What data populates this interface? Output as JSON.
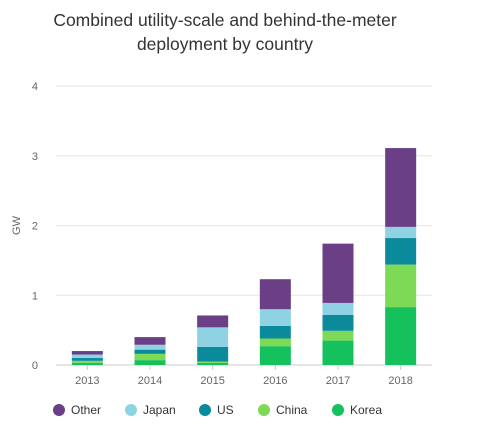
{
  "chart_data": {
    "type": "bar",
    "stacked": true,
    "title": [
      "Combined utility-scale and behind-the-meter",
      "deployment by country"
    ],
    "ylabel": "GW",
    "xlabel": "",
    "ylim": [
      0,
      4
    ],
    "yticks": [
      "0",
      "1",
      "2",
      "3",
      "4"
    ],
    "grid": true,
    "legend_position": "bottom",
    "categories": [
      "2013",
      "2014",
      "2015",
      "2016",
      "2017",
      "2018"
    ],
    "series": [
      {
        "name": "Korea",
        "color": "#14c15c",
        "values": [
          0.03,
          0.07,
          0.03,
          0.27,
          0.35,
          0.83
        ]
      },
      {
        "name": "China",
        "color": "#7ed957",
        "values": [
          0.03,
          0.09,
          0.02,
          0.11,
          0.14,
          0.61
        ]
      },
      {
        "name": "US",
        "color": "#0b8a9c",
        "values": [
          0.04,
          0.06,
          0.21,
          0.18,
          0.23,
          0.38
        ]
      },
      {
        "name": "Japan",
        "color": "#8fd2e3",
        "values": [
          0.05,
          0.07,
          0.28,
          0.24,
          0.17,
          0.16
        ]
      },
      {
        "name": "Other",
        "color": "#6a3f86",
        "values": [
          0.05,
          0.11,
          0.17,
          0.43,
          0.85,
          1.13
        ]
      }
    ],
    "legend_order": [
      "Other",
      "Japan",
      "US",
      "China",
      "Korea"
    ]
  }
}
